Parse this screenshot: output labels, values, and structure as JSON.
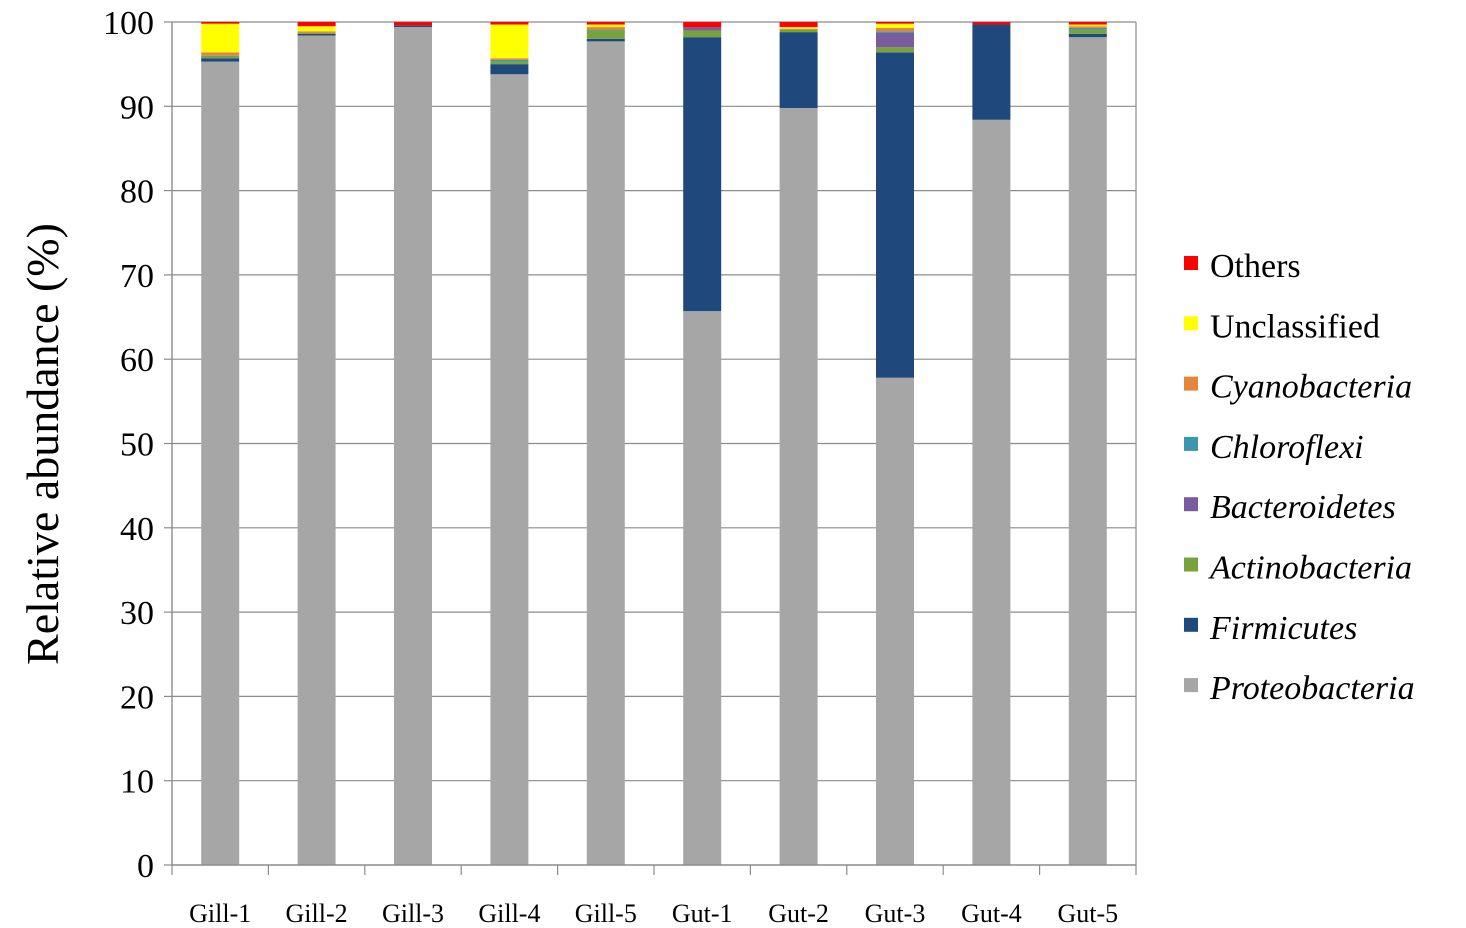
{
  "chart_data": {
    "type": "bar",
    "stacked": true,
    "ylabel": "Relative abundance (%)",
    "xlabel": "",
    "ylim": [
      0,
      100
    ],
    "yticks": [
      0,
      10,
      20,
      30,
      40,
      50,
      60,
      70,
      80,
      90,
      100
    ],
    "grid": "horizontal",
    "legend_position": "right",
    "categories": [
      "Gill-1",
      "Gill-2",
      "Gill-3",
      "Gill-4",
      "Gill-5",
      "Gut-1",
      "Gut-2",
      "Gut-3",
      "Gut-4",
      "Gut-5"
    ],
    "series": [
      {
        "name": "Proteobacteria",
        "italic": true,
        "color": "#a6a6a6",
        "values": [
          95.3,
          98.4,
          99.4,
          93.8,
          97.7,
          65.7,
          89.8,
          57.8,
          88.4,
          98.2
        ]
      },
      {
        "name": "Firmicutes",
        "italic": true,
        "color": "#1f497d",
        "values": [
          0.4,
          0.2,
          0.2,
          1.2,
          0.3,
          32.5,
          9.0,
          38.6,
          11.3,
          0.4
        ]
      },
      {
        "name": "Actinobacteria",
        "italic": true,
        "color": "#77a33d",
        "values": [
          0.2,
          0.1,
          0.0,
          0.3,
          1.0,
          0.8,
          0.3,
          0.6,
          0.0,
          0.5
        ]
      },
      {
        "name": "Bacteroidetes",
        "italic": true,
        "color": "#7a5b9c",
        "values": [
          0.0,
          0.0,
          0.0,
          0.0,
          0.0,
          0.4,
          0.0,
          1.7,
          0.0,
          0.0
        ]
      },
      {
        "name": "Chloroflexi",
        "italic": true,
        "color": "#3a97ad",
        "values": [
          0.1,
          0.0,
          0.0,
          0.2,
          0.1,
          0.0,
          0.0,
          0.2,
          0.0,
          0.2
        ]
      },
      {
        "name": "Cyanobacteria",
        "italic": true,
        "color": "#e5853a",
        "values": [
          0.4,
          0.2,
          0.0,
          0.2,
          0.3,
          0.0,
          0.1,
          0.4,
          0.0,
          0.2
        ]
      },
      {
        "name": "Unclassified",
        "italic": false,
        "color": "#ffff00",
        "values": [
          3.4,
          0.6,
          0.0,
          4.0,
          0.3,
          0.0,
          0.2,
          0.5,
          0.0,
          0.2
        ]
      },
      {
        "name": "Others",
        "italic": false,
        "color": "#ff0000",
        "values": [
          0.2,
          0.5,
          0.4,
          0.3,
          0.3,
          0.6,
          0.6,
          0.2,
          0.3,
          0.3
        ]
      }
    ],
    "legend_order": [
      "Others",
      "Unclassified",
      "Cyanobacteria",
      "Chloroflexi",
      "Bacteroidetes",
      "Actinobacteria",
      "Firmicutes",
      "Proteobacteria"
    ]
  }
}
